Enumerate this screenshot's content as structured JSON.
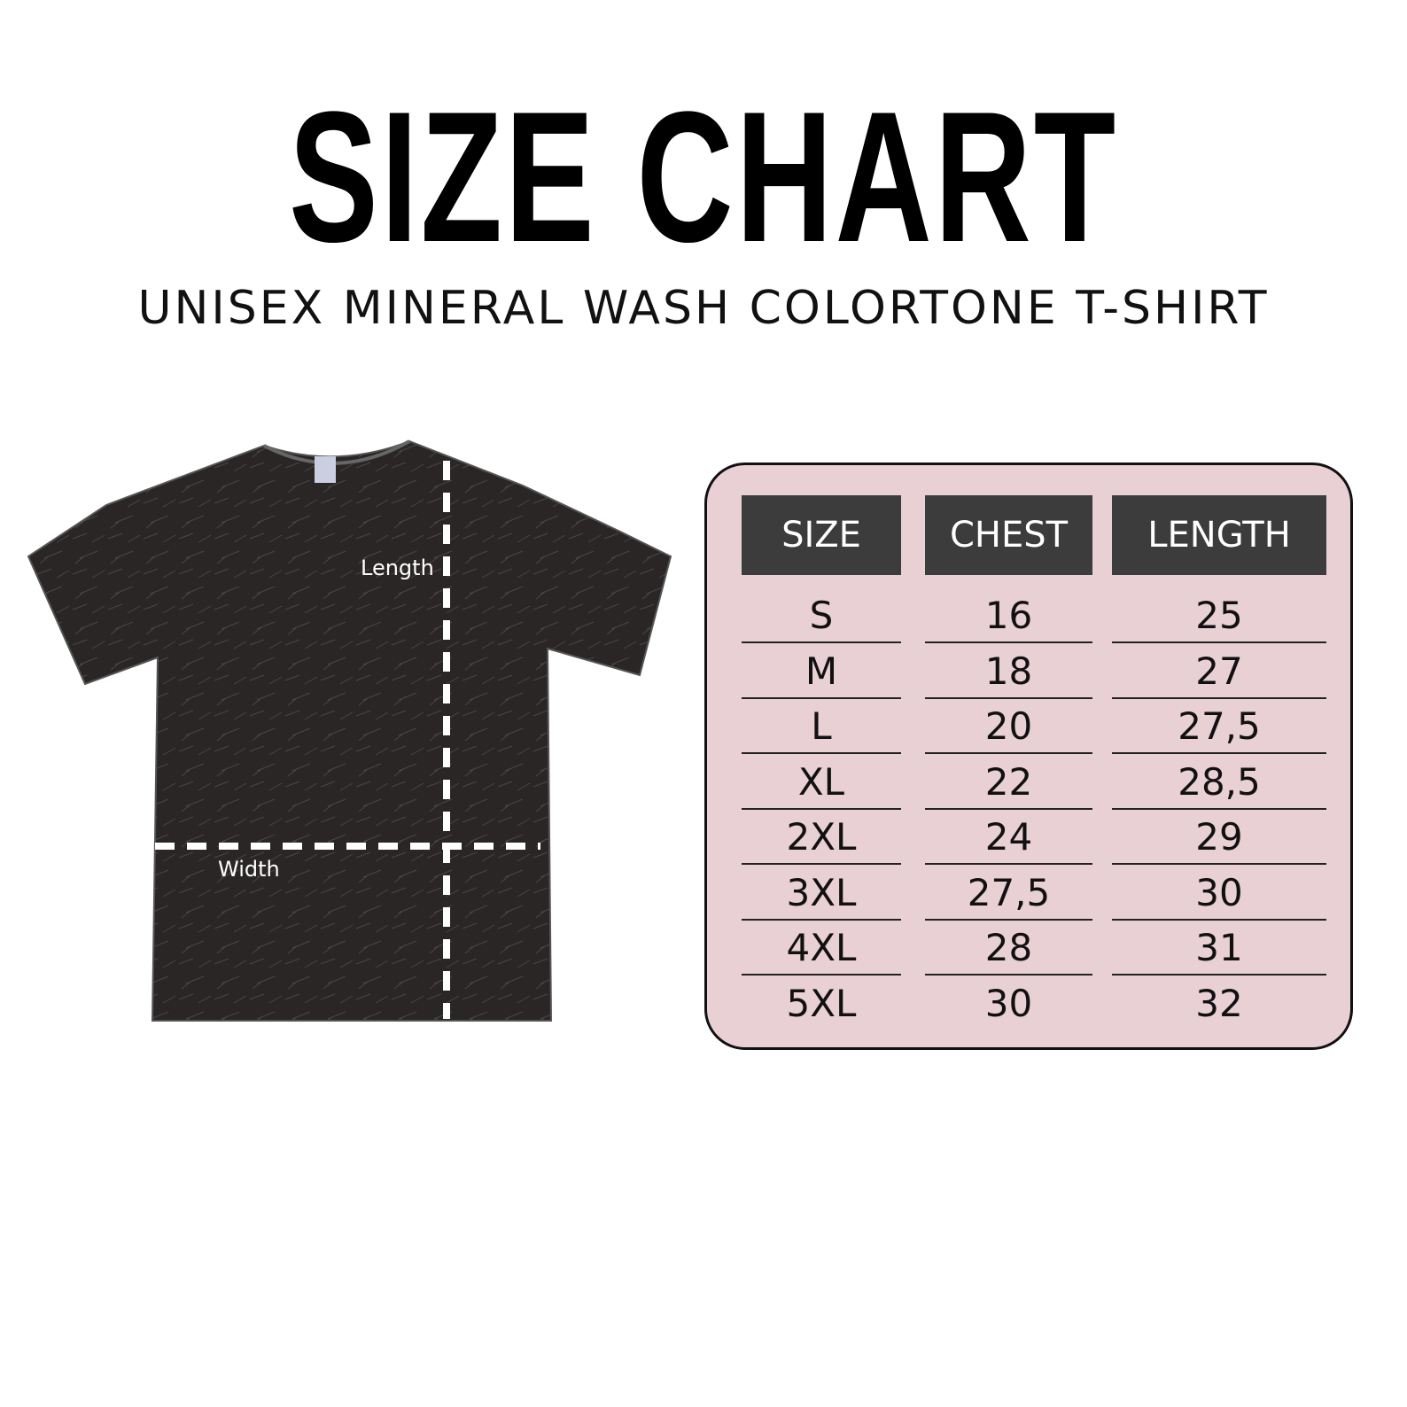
{
  "title": "SIZE CHART",
  "subtitle": "UNISEX MINERAL WASH COLORTONE T-SHIRT",
  "shirt": {
    "length_label": "Length",
    "width_label": "Width",
    "color": "#2a2626"
  },
  "panel_color": "#e8d0d5",
  "table": {
    "headers": [
      "SIZE",
      "CHEST",
      "LENGTH"
    ],
    "rows": [
      [
        "S",
        "16",
        "25"
      ],
      [
        "M",
        "18",
        "27"
      ],
      [
        "L",
        "20",
        "27,5"
      ],
      [
        "XL",
        "22",
        "28,5"
      ],
      [
        "2XL",
        "24",
        "29"
      ],
      [
        "3XL",
        "27,5",
        "30"
      ],
      [
        "4XL",
        "28",
        "31"
      ],
      [
        "5XL",
        "30",
        "32"
      ]
    ]
  }
}
